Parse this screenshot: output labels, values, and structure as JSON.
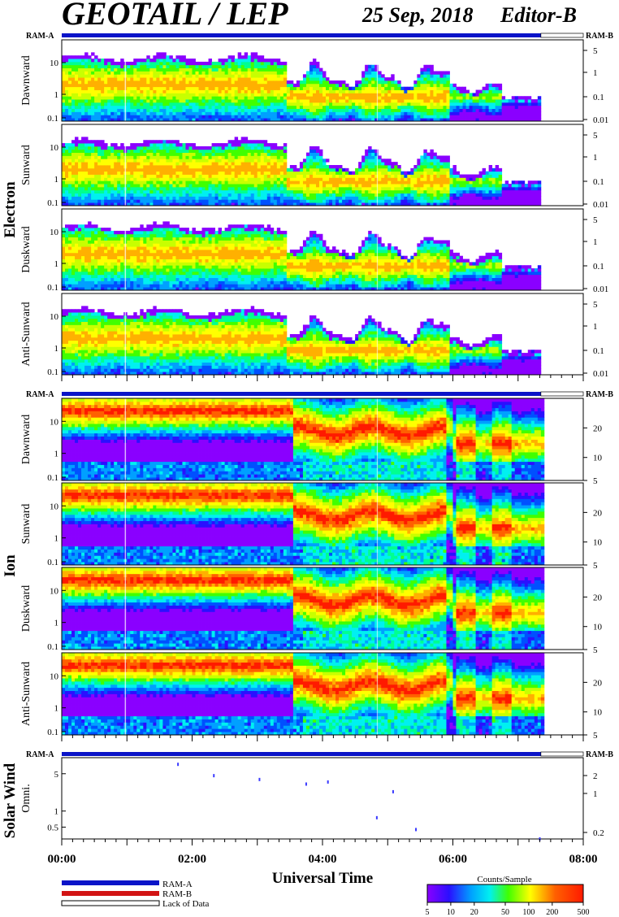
{
  "header": {
    "title": "GEOTAIL / LEP",
    "date": "25 Sep, 2018",
    "editor": "Editor-B"
  },
  "colors": {
    "ram_a": "#0a14c8",
    "ram_b": "#d21414",
    "colormap": [
      "#8a00ff",
      "#2a10ff",
      "#0050ff",
      "#00a0ff",
      "#00f0f0",
      "#00ff90",
      "#40ff00",
      "#c8ff00",
      "#ffff00",
      "#ffb000",
      "#ff6000",
      "#ff1a00"
    ]
  },
  "labels": {
    "ram_a": "RAM-A",
    "ram_b": "RAM-B",
    "electron": "Electron",
    "ion": "Ion",
    "solar_wind": "Solar Wind",
    "x_axis_title": "Universal Time",
    "legend_ram_a": "RAM-A",
    "legend_ram_b": "RAM-B",
    "legend_lack": "Lack of Data",
    "colorbar_title": "Counts/Sample"
  },
  "colorbar_ticks": [
    "5",
    "10",
    "20",
    "50",
    "100",
    "200",
    "500"
  ],
  "chart_data": {
    "type": "heatmap",
    "x_axis": {
      "label": "Universal Time",
      "range": [
        "00:00",
        "08:00"
      ],
      "ticks": [
        "00:00",
        "02:00",
        "04:00",
        "06:00",
        "08:00"
      ],
      "data_end": "07:21"
    },
    "electron_panels": [
      {
        "name": "Dawnward",
        "left_ticks": [
          "10",
          "1",
          "0.1"
        ],
        "right_ticks": [
          "5",
          "1",
          "0.1",
          "0.01"
        ]
      },
      {
        "name": "Sunward",
        "left_ticks": [
          "10",
          "1",
          "0.1"
        ],
        "right_ticks": [
          "5",
          "1",
          "0.1",
          "0.01"
        ]
      },
      {
        "name": "Duskward",
        "left_ticks": [
          "10",
          "1",
          "0.1"
        ],
        "right_ticks": [
          "5",
          "1",
          "0.1",
          "0.01"
        ]
      },
      {
        "name": "Anti-Sunward",
        "left_ticks": [
          "10",
          "1",
          "0.1"
        ],
        "right_ticks": [
          "5",
          "1",
          "0.1",
          "0.01"
        ]
      }
    ],
    "ion_panels": [
      {
        "name": "Dawnward",
        "left_ticks": [
          "10",
          "1",
          "0.1"
        ],
        "right_ticks": [
          "20",
          "10",
          "5"
        ]
      },
      {
        "name": "Sunward",
        "left_ticks": [
          "10",
          "1",
          "0.1"
        ],
        "right_ticks": [
          "20",
          "10",
          "5"
        ]
      },
      {
        "name": "Duskward",
        "left_ticks": [
          "10",
          "1",
          "0.1"
        ],
        "right_ticks": [
          "20",
          "10",
          "5"
        ]
      },
      {
        "name": "Anti-Sunward",
        "left_ticks": [
          "10",
          "1",
          "0.1"
        ],
        "right_ticks": [
          "20",
          "10",
          "5"
        ]
      }
    ],
    "solar_wind_panel": {
      "name": "Omni.",
      "left_ticks": [
        "5",
        "1",
        "0.5"
      ],
      "right_ticks": [
        "2",
        "1",
        "0.2"
      ],
      "points": [
        {
          "t": "01:47",
          "y": 7.5
        },
        {
          "t": "02:20",
          "y": 4.6
        },
        {
          "t": "03:02",
          "y": 3.9
        },
        {
          "t": "03:45",
          "y": 3.2
        },
        {
          "t": "04:05",
          "y": 3.5
        },
        {
          "t": "04:50",
          "y": 0.75
        },
        {
          "t": "05:05",
          "y": 2.3
        },
        {
          "t": "05:26",
          "y": 0.45
        },
        {
          "t": "07:20",
          "y": 0.3
        }
      ]
    }
  }
}
